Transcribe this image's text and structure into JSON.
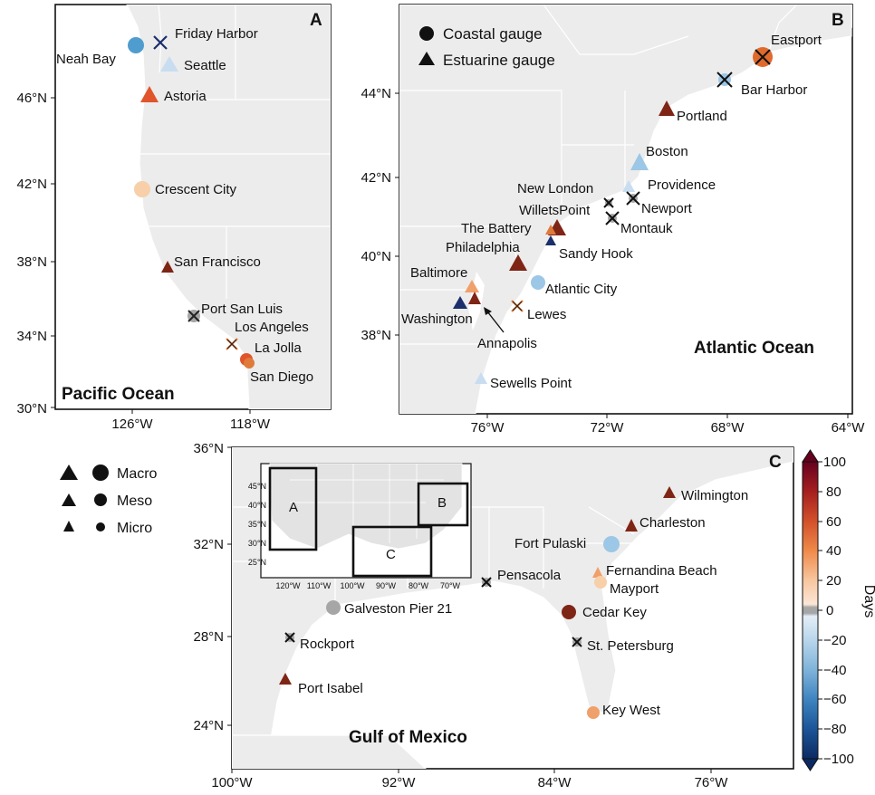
{
  "colors": {
    "macro_100": "#7f2515",
    "pos_80": "#b3361f",
    "pos_60": "#e06a2b",
    "pos_40": "#f0a06a",
    "pos_20": "#f7cfa8",
    "zero": "#a6a6a6",
    "neg_20": "#c8ddf0",
    "neg_40": "#9cc7e6",
    "neg_60": "#4f9dcf",
    "neg_100": "#1a2f6b",
    "land": "#ececec",
    "water": "#ffffff"
  },
  "legend_size": {
    "entries": [
      {
        "label": "Macro"
      },
      {
        "label": "Meso"
      },
      {
        "label": "Micro"
      }
    ]
  },
  "legend_type": {
    "coastal": "Coastal gauge",
    "estuarine": "Estuarine gauge"
  },
  "colorbar": {
    "label": "Days",
    "ticks": [
      "100",
      "80",
      "60",
      "40",
      "20",
      "0",
      "−20",
      "−40",
      "−60",
      "−80",
      "−100"
    ]
  },
  "panels": {
    "A": {
      "letter": "A",
      "ocean": "Pacific Ocean",
      "yticks": [
        "46°N",
        "42°N",
        "38°N",
        "34°N",
        "30°N"
      ],
      "xticks": [
        "126°W",
        "118°W"
      ],
      "stations": [
        {
          "name": "Friday Harbor",
          "marker": "x",
          "color": "#1a2f6b"
        },
        {
          "name": "Neah Bay",
          "marker": "circle",
          "color": "#4f9dcf"
        },
        {
          "name": "Seattle",
          "marker": "triangle",
          "color": "#c8ddf0"
        },
        {
          "name": "Astoria",
          "marker": "triangle",
          "color": "#e0552b"
        },
        {
          "name": "Crescent City",
          "marker": "circle",
          "color": "#f7cfa8"
        },
        {
          "name": "San Francisco",
          "marker": "triangle",
          "color": "#7f2515"
        },
        {
          "name": "Port San Luis",
          "marker": "x",
          "color": "#a6a6a6"
        },
        {
          "name": "Los Angeles",
          "marker": "x",
          "color": "#e07a3a"
        },
        {
          "name": "La Jolla",
          "marker": "circle",
          "color": "#e0552b"
        },
        {
          "name": "San Diego",
          "marker": "circle",
          "color": "#e07a3a"
        }
      ]
    },
    "B": {
      "letter": "B",
      "ocean": "Atlantic Ocean",
      "yticks": [
        "44°N",
        "42°N",
        "40°N",
        "38°N"
      ],
      "xticks": [
        "76°W",
        "72°W",
        "68°W",
        "64°W"
      ],
      "stations": [
        {
          "name": "Eastport",
          "marker": "circle-x",
          "color": "#e06a2b"
        },
        {
          "name": "Bar Harbor",
          "marker": "x",
          "color": "#9cc7e6"
        },
        {
          "name": "Portland",
          "marker": "triangle",
          "color": "#7f2515"
        },
        {
          "name": "Boston",
          "marker": "triangle",
          "color": "#9cc7e6"
        },
        {
          "name": "Providence",
          "marker": "triangle",
          "color": "#c8ddf0"
        },
        {
          "name": "New London",
          "marker": "x",
          "color": "#a6a6a6"
        },
        {
          "name": "Newport",
          "marker": "x",
          "color": "#a6a6a6"
        },
        {
          "name": "WilletsPoint",
          "marker": "triangle",
          "color": "#7f2515"
        },
        {
          "name": "Montauk",
          "marker": "x",
          "color": "#a6a6a6"
        },
        {
          "name": "The Battery",
          "marker": "triangle",
          "color": "#e07a3a"
        },
        {
          "name": "Sandy Hook",
          "marker": "triangle",
          "color": "#1a2f6b"
        },
        {
          "name": "Philadelphia",
          "marker": "triangle",
          "color": "#7f2515"
        },
        {
          "name": "Baltimore",
          "marker": "triangle",
          "color": "#f0a06a"
        },
        {
          "name": "Atlantic City",
          "marker": "circle",
          "color": "#9cc7e6"
        },
        {
          "name": "Washington",
          "marker": "triangle",
          "color": "#1a2f6b"
        },
        {
          "name": "Lewes",
          "marker": "x",
          "color": "#e07a3a"
        },
        {
          "name": "Annapolis",
          "marker": "triangle",
          "color": "#7f2515"
        },
        {
          "name": "Sewells Point",
          "marker": "triangle",
          "color": "#c8ddf0"
        }
      ]
    },
    "C": {
      "letter": "C",
      "ocean": "Gulf of Mexico",
      "yticks": [
        "36°N",
        "32°N",
        "28°N",
        "24°N"
      ],
      "xticks": [
        "100°W",
        "92°W",
        "84°W",
        "76°W"
      ],
      "stations": [
        {
          "name": "Wilmington",
          "marker": "triangle",
          "color": "#7f2515"
        },
        {
          "name": "Charleston",
          "marker": "triangle",
          "color": "#7f2515"
        },
        {
          "name": "Fort Pulaski",
          "marker": "circle",
          "color": "#9cc7e6"
        },
        {
          "name": "Fernandina Beach",
          "marker": "triangle",
          "color": "#f0a06a"
        },
        {
          "name": "Mayport",
          "marker": "circle",
          "color": "#f7cfa8"
        },
        {
          "name": "Pensacola",
          "marker": "x",
          "color": "#a6a6a6"
        },
        {
          "name": "Galveston Pier 21",
          "marker": "circle",
          "color": "#a6a6a6"
        },
        {
          "name": "Cedar Key",
          "marker": "circle",
          "color": "#7f2515"
        },
        {
          "name": "Rockport",
          "marker": "x",
          "color": "#a6a6a6"
        },
        {
          "name": "St. Petersburg",
          "marker": "x",
          "color": "#a6a6a6"
        },
        {
          "name": "Port Isabel",
          "marker": "triangle",
          "color": "#7f2515"
        },
        {
          "name": "Key West",
          "marker": "circle",
          "color": "#f0a06a"
        }
      ],
      "inset": {
        "yticks": [
          "45°N",
          "40°N",
          "35°N",
          "30°N",
          "25°N"
        ],
        "xticks": [
          "120°W",
          "110°W",
          "100°W",
          "90°W",
          "80°W",
          "70°W"
        ],
        "boxes": [
          "A",
          "B",
          "C"
        ]
      }
    }
  }
}
